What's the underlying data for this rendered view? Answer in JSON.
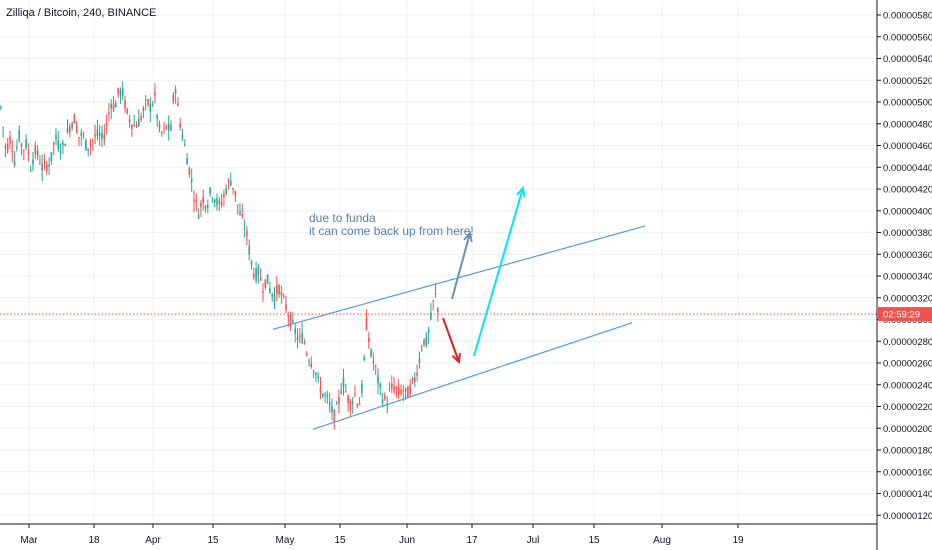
{
  "header": {
    "title": "Zilliqa / Bitcoin, 240, BINANCE"
  },
  "price_badge": {
    "label": "02:59:29",
    "value": 3.05e-06,
    "color": "#ef5350"
  },
  "annotation": {
    "line1": "due to funda",
    "line2": "it can come back up from here!"
  },
  "colors": {
    "up": "#26a69a",
    "down": "#ef5350",
    "candle_body": "#131722",
    "channel": "#5b9bd5",
    "arrow_up_blue": "#6b8fb8",
    "arrow_down_red": "#e02020",
    "arrow_up_cyan": "#00e5ff",
    "grid": "#eef1f6"
  },
  "chart_data": {
    "type": "candlestick",
    "title": "Zilliqa / Bitcoin, 240, BINANCE",
    "yticks": [
      "0.00000580",
      "0.00000560",
      "0.00000540",
      "0.00000520",
      "0.00000500",
      "0.00000480",
      "0.00000460",
      "0.00000440",
      "0.00000420",
      "0.00000400",
      "0.00000380",
      "0.00000360",
      "0.00000340",
      "0.00000320",
      "0.00000300",
      "0.00000280",
      "0.00000260",
      "0.00000240",
      "0.00000220",
      "0.00000200",
      "0.00000180",
      "0.00000160",
      "0.00000140",
      "0.00000120"
    ],
    "xticks": [
      "Mar",
      "18",
      "Apr",
      "15",
      "May",
      "15",
      "Jun",
      "17",
      "Jul",
      "15",
      "Aug",
      "19"
    ],
    "ylim": [
      1.1e-06,
      5.95e-06
    ],
    "grid": true,
    "price_path": [
      {
        "x": 0,
        "y": 4.95e-06
      },
      {
        "x": 5,
        "y": 4.55e-06
      },
      {
        "x": 10,
        "y": 4.68e-06
      },
      {
        "x": 14,
        "y": 4.45e-06
      },
      {
        "x": 18,
        "y": 4.7e-06
      },
      {
        "x": 22,
        "y": 4.56e-06
      },
      {
        "x": 26,
        "y": 4.62e-06
      },
      {
        "x": 30,
        "y": 4.4e-06
      },
      {
        "x": 34,
        "y": 4.55e-06
      },
      {
        "x": 38,
        "y": 4.5e-06
      },
      {
        "x": 42,
        "y": 4.38e-06
      },
      {
        "x": 46,
        "y": 4.42e-06
      },
      {
        "x": 50,
        "y": 4.45e-06
      },
      {
        "x": 54,
        "y": 4.68e-06
      },
      {
        "x": 58,
        "y": 4.6e-06
      },
      {
        "x": 62,
        "y": 4.58e-06
      },
      {
        "x": 66,
        "y": 4.7e-06
      },
      {
        "x": 70,
        "y": 4.8e-06
      },
      {
        "x": 74,
        "y": 4.85e-06
      },
      {
        "x": 78,
        "y": 4.68e-06
      },
      {
        "x": 82,
        "y": 4.7e-06
      },
      {
        "x": 86,
        "y": 4.58e-06
      },
      {
        "x": 90,
        "y": 4.62e-06
      },
      {
        "x": 94,
        "y": 4.68e-06
      },
      {
        "x": 98,
        "y": 4.7e-06
      },
      {
        "x": 102,
        "y": 4.65e-06
      },
      {
        "x": 106,
        "y": 4.8e-06
      },
      {
        "x": 110,
        "y": 5e-06
      },
      {
        "x": 114,
        "y": 4.95e-06
      },
      {
        "x": 118,
        "y": 5.1e-06
      },
      {
        "x": 122,
        "y": 5.08e-06
      },
      {
        "x": 126,
        "y": 4.9e-06
      },
      {
        "x": 130,
        "y": 4.82e-06
      },
      {
        "x": 134,
        "y": 4.78e-06
      },
      {
        "x": 138,
        "y": 4.82e-06
      },
      {
        "x": 142,
        "y": 4.9e-06
      },
      {
        "x": 146,
        "y": 5e-06
      },
      {
        "x": 150,
        "y": 4.95e-06
      },
      {
        "x": 154,
        "y": 5.05e-06
      },
      {
        "x": 158,
        "y": 4.75e-06
      },
      {
        "x": 162,
        "y": 4.7e-06
      },
      {
        "x": 166,
        "y": 4.78e-06
      },
      {
        "x": 170,
        "y": 4.72e-06
      },
      {
        "x": 174,
        "y": 5.2e-06
      },
      {
        "x": 178,
        "y": 4.88e-06
      },
      {
        "x": 182,
        "y": 4.68e-06
      },
      {
        "x": 186,
        "y": 4.5e-06
      },
      {
        "x": 190,
        "y": 4.32e-06
      },
      {
        "x": 194,
        "y": 4.1e-06
      },
      {
        "x": 198,
        "y": 3.98e-06
      },
      {
        "x": 202,
        "y": 4.12e-06
      },
      {
        "x": 206,
        "y": 4.05e-06
      },
      {
        "x": 210,
        "y": 4.18e-06
      },
      {
        "x": 214,
        "y": 4.12e-06
      },
      {
        "x": 218,
        "y": 4.04e-06
      },
      {
        "x": 222,
        "y": 4.1e-06
      },
      {
        "x": 226,
        "y": 4.22e-06
      },
      {
        "x": 230,
        "y": 4.28e-06
      },
      {
        "x": 234,
        "y": 4.18e-06
      },
      {
        "x": 238,
        "y": 4e-06
      },
      {
        "x": 242,
        "y": 3.9e-06
      },
      {
        "x": 246,
        "y": 3.78e-06
      },
      {
        "x": 250,
        "y": 3.55e-06
      },
      {
        "x": 254,
        "y": 3.4e-06
      },
      {
        "x": 258,
        "y": 3.44e-06
      },
      {
        "x": 262,
        "y": 3.3e-06
      },
      {
        "x": 266,
        "y": 3.38e-06
      },
      {
        "x": 270,
        "y": 3.25e-06
      },
      {
        "x": 274,
        "y": 3.22e-06
      },
      {
        "x": 278,
        "y": 3.3e-06
      },
      {
        "x": 282,
        "y": 3.18e-06
      },
      {
        "x": 286,
        "y": 3.1e-06
      },
      {
        "x": 290,
        "y": 2.98e-06
      },
      {
        "x": 294,
        "y": 2.9e-06
      },
      {
        "x": 298,
        "y": 2.8e-06
      },
      {
        "x": 302,
        "y": 2.85e-06
      },
      {
        "x": 306,
        "y": 2.7e-06
      },
      {
        "x": 310,
        "y": 2.62e-06
      },
      {
        "x": 314,
        "y": 2.55e-06
      },
      {
        "x": 318,
        "y": 2.4e-06
      },
      {
        "x": 322,
        "y": 2.32e-06
      },
      {
        "x": 326,
        "y": 2.28e-06
      },
      {
        "x": 330,
        "y": 2.18e-06
      },
      {
        "x": 334,
        "y": 2.1e-06
      },
      {
        "x": 338,
        "y": 2.25e-06
      },
      {
        "x": 342,
        "y": 2.45e-06
      },
      {
        "x": 346,
        "y": 2.3e-06
      },
      {
        "x": 350,
        "y": 2.22e-06
      },
      {
        "x": 354,
        "y": 2.32e-06
      },
      {
        "x": 358,
        "y": 2.2e-06
      },
      {
        "x": 362,
        "y": 2.4e-06
      },
      {
        "x": 366,
        "y": 3e-06
      },
      {
        "x": 370,
        "y": 2.68e-06
      },
      {
        "x": 374,
        "y": 2.58e-06
      },
      {
        "x": 378,
        "y": 2.4e-06
      },
      {
        "x": 382,
        "y": 2.28e-06
      },
      {
        "x": 386,
        "y": 2.24e-06
      },
      {
        "x": 390,
        "y": 2.36e-06
      },
      {
        "x": 394,
        "y": 2.38e-06
      },
      {
        "x": 398,
        "y": 2.32e-06
      },
      {
        "x": 402,
        "y": 2.36e-06
      },
      {
        "x": 406,
        "y": 2.3e-06
      },
      {
        "x": 410,
        "y": 2.38e-06
      },
      {
        "x": 414,
        "y": 2.45e-06
      },
      {
        "x": 418,
        "y": 2.6e-06
      },
      {
        "x": 422,
        "y": 2.82e-06
      },
      {
        "x": 426,
        "y": 2.78e-06
      },
      {
        "x": 430,
        "y": 3e-06
      },
      {
        "x": 434,
        "y": 3.25e-06
      },
      {
        "x": 438,
        "y": 3.05e-06
      }
    ],
    "channel_upper": [
      {
        "x": 273,
        "y": 2.91e-06
      },
      {
        "x": 645,
        "y": 3.86e-06
      }
    ],
    "channel_lower": [
      {
        "x": 313,
        "y": 1.99e-06
      },
      {
        "x": 632,
        "y": 2.97e-06
      }
    ]
  }
}
